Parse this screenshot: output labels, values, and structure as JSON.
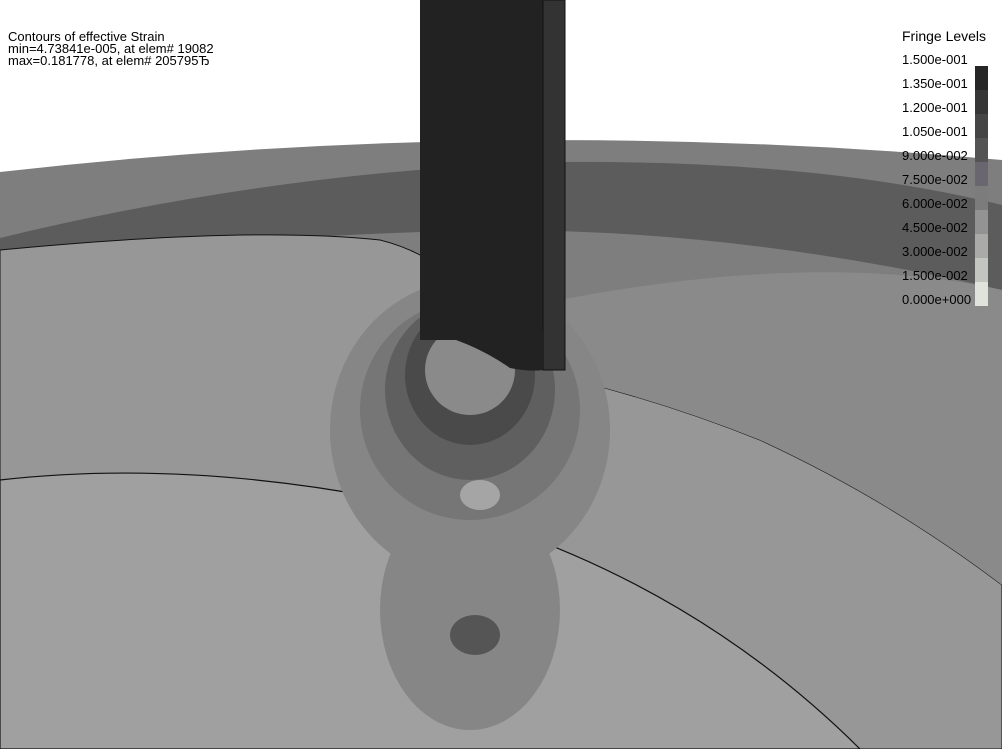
{
  "header": {
    "title": "Contours of effective Strain",
    "min_line": "min=4.73841e-005, at elem# 19082",
    "max_line": "max=0.181778, at elem# 205795Ђ"
  },
  "fringe_levels": {
    "title": "Fringe Levels",
    "labels": [
      "1.500e-001",
      "1.350e-001",
      "1.200e-001",
      "1.050e-001",
      "9.000e-002",
      "7.500e-002",
      "6.000e-002",
      "4.500e-002",
      "3.000e-002",
      "1.500e-002",
      "0.000e+000"
    ],
    "colors": [
      "#262626",
      "#363636",
      "#454545",
      "#545454",
      "#6a6670",
      "#7c7c7c",
      "#939393",
      "#aaaba9",
      "#c3c5c1",
      "#dfe3dc"
    ]
  }
}
